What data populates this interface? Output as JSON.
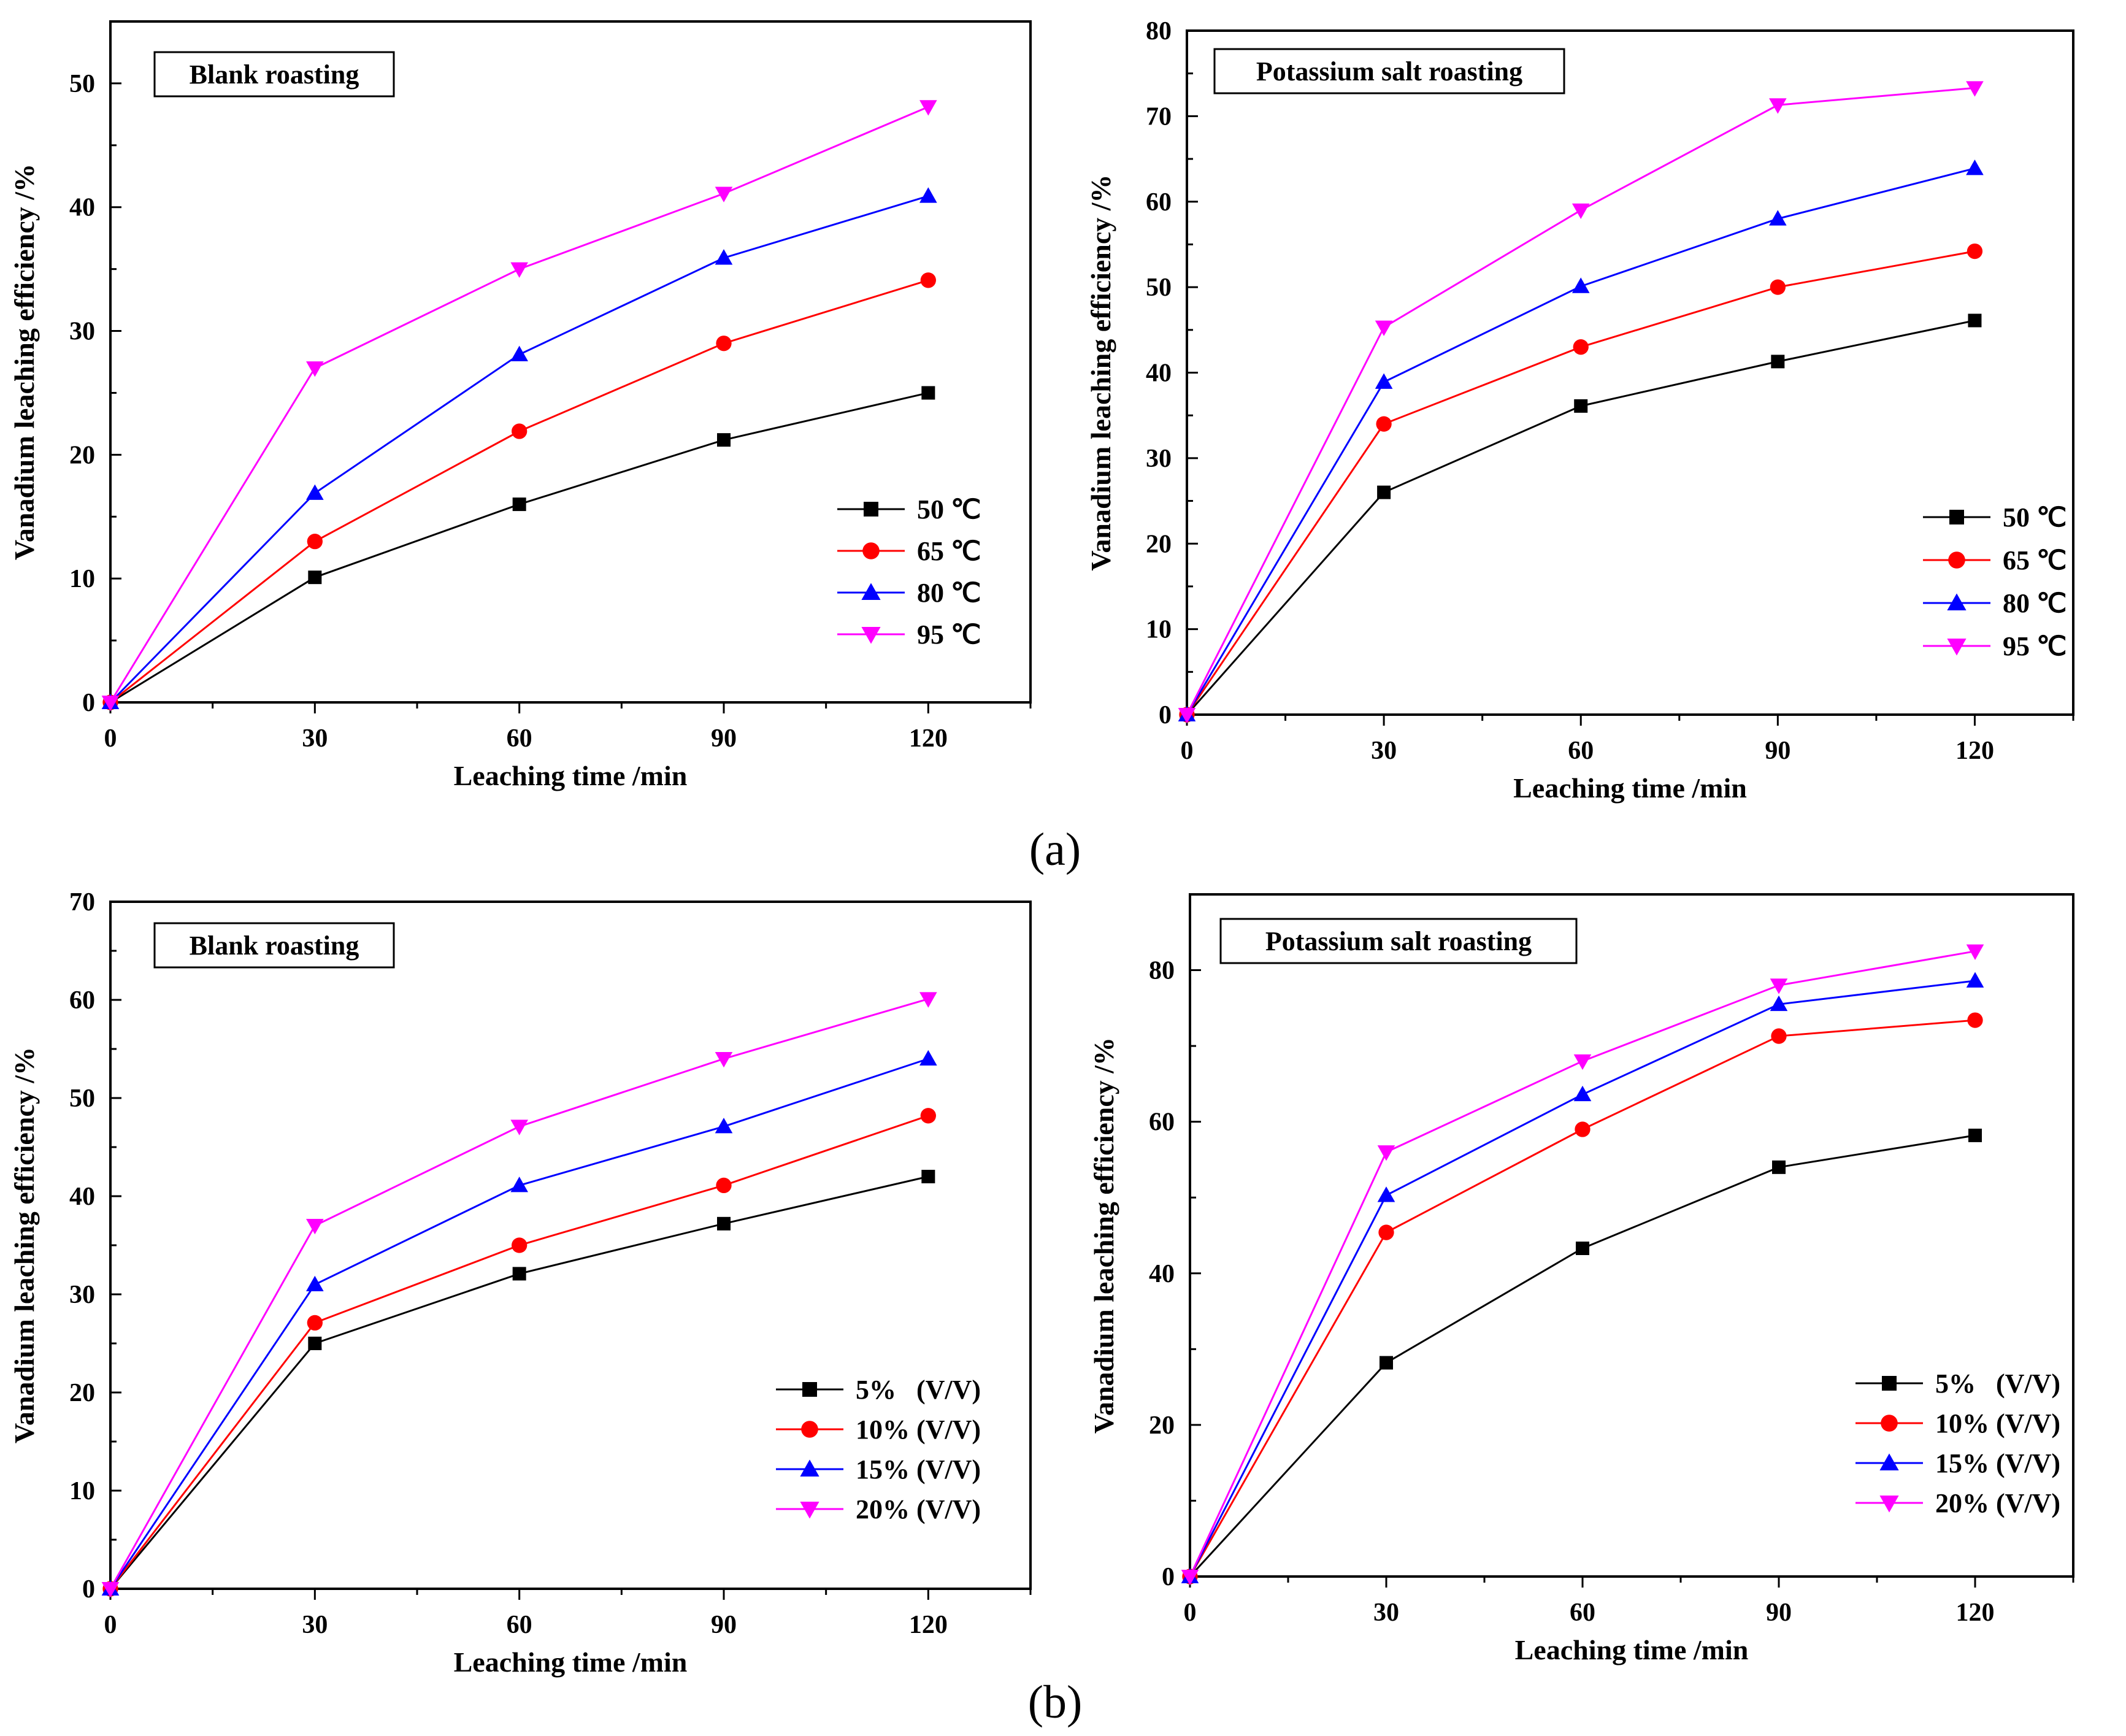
{
  "figure": {
    "panel_labels": [
      "(a)",
      "(b)"
    ]
  },
  "chart_data": [
    {
      "type": "line",
      "title": "Blank roasting",
      "xlabel": "Leaching time /min",
      "ylabel": "Vanadium leaching efficiency /%",
      "xlim": [
        0,
        135
      ],
      "ylim": [
        0,
        55
      ],
      "xticks": [
        0,
        30,
        60,
        90,
        120
      ],
      "yticks": [
        0,
        10,
        20,
        30,
        40,
        50
      ],
      "x": [
        0,
        30,
        60,
        90,
        120
      ],
      "legend_position": "right",
      "series": [
        {
          "name": "50 ℃",
          "color": "#000000",
          "marker": "square",
          "values": [
            0,
            10.1,
            16.0,
            21.2,
            25.0
          ]
        },
        {
          "name": "65 ℃",
          "color": "#ff0000",
          "marker": "circle",
          "values": [
            0,
            13.0,
            21.9,
            29.0,
            34.1
          ]
        },
        {
          "name": "80 ℃",
          "color": "#0000ff",
          "marker": "triangle-up",
          "values": [
            0,
            16.9,
            28.1,
            35.9,
            40.9
          ]
        },
        {
          "name": "95 ℃",
          "color": "#ff00ff",
          "marker": "triangle-down",
          "values": [
            0,
            27.0,
            35.0,
            41.1,
            48.1
          ]
        }
      ]
    },
    {
      "type": "line",
      "title": "Potassium salt roasting",
      "xlabel": "Leaching time /min",
      "ylabel": "Vanadium leaching efficiency /%",
      "xlim": [
        0,
        135
      ],
      "ylim": [
        0,
        80
      ],
      "xticks": [
        0,
        30,
        60,
        90,
        120
      ],
      "yticks": [
        0,
        10,
        20,
        30,
        40,
        50,
        60,
        70,
        80
      ],
      "x": [
        0,
        30,
        60,
        90,
        120
      ],
      "legend_position": "right",
      "series": [
        {
          "name": "50 ℃",
          "color": "#000000",
          "marker": "square",
          "values": [
            0,
            26.0,
            36.1,
            41.3,
            46.1
          ]
        },
        {
          "name": "65 ℃",
          "color": "#ff0000",
          "marker": "circle",
          "values": [
            0,
            34.0,
            43.0,
            50.0,
            54.2
          ]
        },
        {
          "name": "80 ℃",
          "color": "#0000ff",
          "marker": "triangle-up",
          "values": [
            0,
            38.9,
            50.1,
            58.0,
            63.9
          ]
        },
        {
          "name": "95 ℃",
          "color": "#ff00ff",
          "marker": "triangle-down",
          "values": [
            0,
            45.3,
            59.0,
            71.3,
            73.3
          ]
        }
      ]
    },
    {
      "type": "line",
      "title": "Blank roasting",
      "xlabel": "Leaching time /min",
      "ylabel": "Vanadium leaching efficiency /%",
      "xlim": [
        0,
        135
      ],
      "ylim": [
        0,
        70
      ],
      "xticks": [
        0,
        30,
        60,
        90,
        120
      ],
      "yticks": [
        0,
        10,
        20,
        30,
        40,
        50,
        60,
        70
      ],
      "x": [
        0,
        30,
        60,
        90,
        120
      ],
      "legend_position": "right",
      "series": [
        {
          "name": "5%   (V/V)",
          "color": "#000000",
          "marker": "square",
          "values": [
            0,
            25.0,
            32.1,
            37.2,
            42.0
          ]
        },
        {
          "name": "10% (V/V)",
          "color": "#ff0000",
          "marker": "circle",
          "values": [
            0,
            27.1,
            35.0,
            41.1,
            48.2
          ]
        },
        {
          "name": "15% (V/V)",
          "color": "#0000ff",
          "marker": "triangle-up",
          "values": [
            0,
            31.0,
            41.1,
            47.1,
            54.0
          ]
        },
        {
          "name": "20% (V/V)",
          "color": "#ff00ff",
          "marker": "triangle-down",
          "values": [
            0,
            37.0,
            47.1,
            54.0,
            60.1
          ]
        }
      ]
    },
    {
      "type": "line",
      "title": "Potassium salt roasting",
      "xlabel": "Leaching time /min",
      "ylabel": "Vanadium leaching efficiency /%",
      "xlim": [
        0,
        135
      ],
      "ylim": [
        0,
        90
      ],
      "xticks": [
        0,
        30,
        60,
        90,
        120
      ],
      "yticks": [
        0,
        20,
        40,
        60,
        80
      ],
      "x": [
        0,
        30,
        60,
        90,
        120
      ],
      "legend_position": "right",
      "series": [
        {
          "name": "5%   (V/V)",
          "color": "#000000",
          "marker": "square",
          "values": [
            0,
            28.2,
            43.3,
            54.0,
            58.2
          ]
        },
        {
          "name": "10% (V/V)",
          "color": "#ff0000",
          "marker": "circle",
          "values": [
            0,
            45.4,
            59.0,
            71.3,
            73.4
          ]
        },
        {
          "name": "15% (V/V)",
          "color": "#0000ff",
          "marker": "triangle-up",
          "values": [
            0,
            50.3,
            63.6,
            75.5,
            78.6
          ]
        },
        {
          "name": "20% (V/V)",
          "color": "#ff00ff",
          "marker": "triangle-down",
          "values": [
            0,
            56.0,
            68.0,
            78.0,
            82.5
          ]
        }
      ]
    }
  ]
}
